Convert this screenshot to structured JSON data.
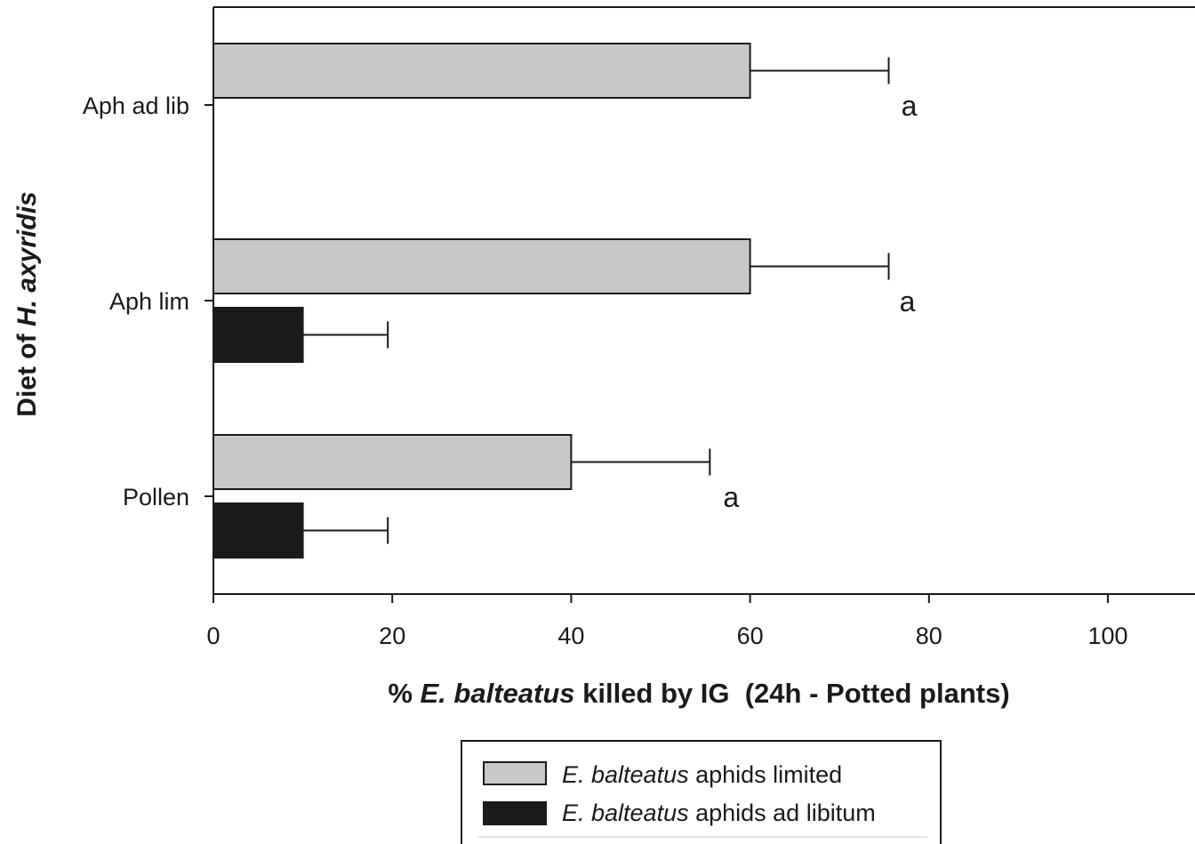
{
  "chart_data": {
    "type": "bar",
    "orientation": "horizontal",
    "categories": [
      "Aph ad lib",
      "Aph lim",
      "Pollen"
    ],
    "series": [
      {
        "name_italic": "E. balteatus",
        "name_rest": " aphids limited",
        "color": "#c8c8c8",
        "values": [
          60,
          60,
          40
        ],
        "errors": [
          15.5,
          15.5,
          15.5
        ]
      },
      {
        "name_italic": "E. balteatus",
        "name_rest": " aphids ad libitum",
        "color": "#1a1a1a",
        "values": [
          null,
          10,
          10
        ],
        "errors": [
          null,
          9.5,
          9.5
        ]
      }
    ],
    "significance_letters": [
      "a",
      "a",
      "a"
    ],
    "xlim": [
      0,
      110
    ],
    "xticks": [
      0,
      20,
      40,
      60,
      80,
      100
    ],
    "xlabel": {
      "prefix": "% ",
      "italic": "E. balteatus",
      "rest": " killed by IG  (24h - Potted plants)"
    },
    "ylabel": {
      "prefix": "Diet of ",
      "italic": "H. axyridis"
    },
    "legend_position": "bottom-center"
  }
}
